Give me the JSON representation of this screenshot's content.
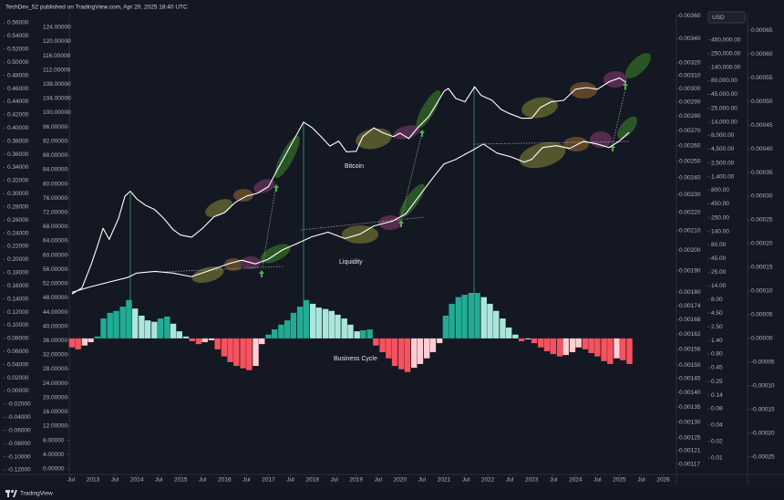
{
  "header": "TechDev_52 published on TradingView.com, Apr 20, 2025 18:40 UTC",
  "footer": "TradingView",
  "currency": "USD",
  "chart_data": [
    {
      "type": "line",
      "name": "Bitcoin",
      "color": "#ffffff",
      "log": true,
      "xlim": [
        2012.46,
        2026.3
      ],
      "xticks": [
        {
          "value": 2012.5,
          "label": "Jul"
        },
        2013,
        {
          "value": 2013.5,
          "label": "Jul"
        },
        2014,
        {
          "value": 2014.5,
          "label": "Jul"
        },
        2015,
        {
          "value": 2015.5,
          "label": "Jul"
        },
        2016,
        {
          "value": 2016.5,
          "label": "Jul"
        },
        2017,
        {
          "value": 2017.5,
          "label": "Jul"
        },
        2018,
        {
          "value": 2018.5,
          "label": "Jul"
        },
        2019,
        {
          "value": 2019.5,
          "label": "Jul"
        },
        2020,
        {
          "value": 2020.5,
          "label": "Jul"
        },
        2021,
        {
          "value": 2021.5,
          "label": "Jul"
        },
        2022,
        {
          "value": 2022.5,
          "label": "Jul"
        },
        2023,
        {
          "value": 2023.5,
          "label": "Jul"
        },
        2024,
        {
          "value": 2024.5,
          "label": "Jul"
        },
        2025,
        {
          "value": 2025.5,
          "label": "Jul"
        },
        2026
      ],
      "ylim": [
        0.005,
        1350000
      ],
      "yticks": [
        {
          "value": 450000,
          "label": "450,000.00"
        },
        {
          "value": 250000,
          "label": "250,000.00"
        },
        {
          "value": 140000,
          "label": "140,000.00"
        },
        {
          "value": 80000,
          "label": "80,000.00"
        },
        {
          "value": 45000,
          "label": "45,000.00"
        },
        {
          "value": 25000,
          "label": "25,000.00"
        },
        {
          "value": 14000,
          "label": "14,000.00"
        },
        {
          "value": 8000,
          "label": "8,000.00"
        },
        {
          "value": 4500,
          "label": "4,500.00"
        },
        {
          "value": 2500,
          "label": "2,500.00"
        },
        {
          "value": 1400,
          "label": "1,400.00"
        },
        {
          "value": 800,
          "label": "800.00"
        },
        {
          "value": 450,
          "label": "450.00"
        },
        {
          "value": 250,
          "label": "250.00"
        },
        {
          "value": 140,
          "label": "140.00"
        },
        {
          "value": 80,
          "label": "80.00"
        },
        {
          "value": 45,
          "label": "45.00"
        },
        {
          "value": 25,
          "label": "25.00"
        },
        {
          "value": 14,
          "label": "14.00"
        },
        {
          "value": 8,
          "label": "8.00"
        },
        {
          "value": 4.5,
          "label": "4.50"
        },
        {
          "value": 2.5,
          "label": "2.50"
        },
        {
          "value": 1.4,
          "label": "1.40"
        },
        {
          "value": 0.8,
          "label": "0.80"
        },
        0.45,
        0.25,
        0.14,
        0.08,
        0.04,
        0.02,
        0.01
      ],
      "x": [
        2012.52,
        2012.75,
        2012.96,
        2013.1,
        2013.23,
        2013.37,
        2013.58,
        2013.73,
        2013.85,
        2014.0,
        2014.2,
        2014.41,
        2014.62,
        2014.83,
        2015.0,
        2015.25,
        2015.5,
        2015.76,
        2016.0,
        2016.25,
        2016.5,
        2016.75,
        2017.0,
        2017.22,
        2017.5,
        2017.8,
        2018.0,
        2018.2,
        2018.4,
        2018.6,
        2018.78,
        2019.0,
        2019.15,
        2019.4,
        2019.6,
        2019.85,
        2020.0,
        2020.2,
        2020.4,
        2020.65,
        2020.82,
        2021.0,
        2021.1,
        2021.27,
        2021.48,
        2021.7,
        2021.85,
        2022.1,
        2022.3,
        2022.5,
        2022.77,
        2023.0,
        2023.2,
        2023.45,
        2023.73,
        2024.0,
        2024.25,
        2024.5,
        2024.77,
        2025.0,
        2025.15
      ],
      "values": [
        10,
        13,
        35,
        75,
        160,
        100,
        240,
        620,
        760,
        550,
        420,
        350,
        240,
        150,
        120,
        110,
        160,
        260,
        310,
        480,
        620,
        700,
        920,
        2000,
        5100,
        14000,
        11000,
        7600,
        5100,
        6300,
        4000,
        4100,
        7600,
        11000,
        9000,
        7600,
        8800,
        7000,
        11000,
        17500,
        29000,
        51000,
        58000,
        38000,
        33000,
        62000,
        43000,
        35000,
        24000,
        20000,
        16500,
        16500,
        26000,
        33000,
        35000,
        56000,
        60000,
        56000,
        77000,
        90000,
        75000
      ]
    },
    {
      "type": "line",
      "name": "Liquidity",
      "color": "#ffffff",
      "log": true,
      "ylim": [
        0.00114,
        0.00362
      ],
      "yticks": [
        {
          "value": 0.0036,
          "label": "0.00360"
        },
        {
          "value": 0.0034,
          "label": "0.00340"
        },
        {
          "value": 0.0032,
          "label": "0.00320"
        },
        {
          "value": 0.0031,
          "label": "0.00310"
        },
        {
          "value": 0.003,
          "label": "0.00300"
        },
        {
          "value": 0.0029,
          "label": "0.00290"
        },
        {
          "value": 0.0028,
          "label": "0.00280"
        },
        {
          "value": 0.0027,
          "label": "0.00270"
        },
        {
          "value": 0.0026,
          "label": "0.00260"
        },
        {
          "value": 0.0025,
          "label": "0.00250"
        },
        {
          "value": 0.0024,
          "label": "0.00240"
        },
        {
          "value": 0.0023,
          "label": "0.00230"
        },
        {
          "value": 0.0022,
          "label": "0.00220"
        },
        {
          "value": 0.0021,
          "label": "0.00210"
        },
        {
          "value": 0.002,
          "label": "0.00200"
        },
        {
          "value": 0.0019,
          "label": "0.00190"
        },
        {
          "value": 0.0018,
          "label": "0.00180"
        },
        0.00174,
        0.00168,
        0.00162,
        0.00156,
        {
          "value": 0.0015,
          "label": "0.00150"
        },
        0.00145,
        {
          "value": 0.0014,
          "label": "0.00140"
        },
        0.00135,
        {
          "value": 0.0013,
          "label": "0.00130"
        },
        0.00125,
        0.00121,
        0.00117
      ],
      "x": [
        2012.52,
        2012.96,
        2013.37,
        2013.79,
        2014.0,
        2014.41,
        2014.83,
        2015.24,
        2015.66,
        2016.08,
        2016.39,
        2016.7,
        2016.99,
        2017.32,
        2017.63,
        2017.99,
        2018.36,
        2018.74,
        2019.09,
        2019.4,
        2019.82,
        2020.13,
        2020.44,
        2020.75,
        2021.0,
        2021.27,
        2021.65,
        2021.9,
        2022.21,
        2022.52,
        2022.83,
        2023.0,
        2023.25,
        2023.56,
        2023.87,
        2024.18,
        2024.49,
        2024.76,
        2024.99,
        2025.22
      ],
      "values": [
        0.0018,
        0.001826,
        0.001847,
        0.001868,
        0.001889,
        0.001897,
        0.001889,
        0.001872,
        0.001901,
        0.001933,
        0.001951,
        0.001933,
        0.001955,
        0.002002,
        0.002032,
        0.002069,
        0.002093,
        0.00206,
        0.002083,
        0.002126,
        0.002151,
        0.002191,
        0.002293,
        0.002399,
        0.002483,
        0.002512,
        0.00257,
        0.002611,
        0.002552,
        0.002529,
        0.002495,
        0.002512,
        0.002588,
        0.0026,
        0.002582,
        0.002628,
        0.002611,
        0.002588,
        0.002628,
        0.002688
      ]
    },
    {
      "type": "bar",
      "name": "Business Cycle",
      "colors": {
        "grow_above": "#22ab94",
        "fall_above": "#ace5dc",
        "grow_below": "#ffcdd2",
        "fall_below": "#f7525f"
      },
      "ylim": [
        -0.000287,
        0.000685
      ],
      "yticks": [
        0.00065,
        {
          "value": 0.0006,
          "label": "0.00060"
        },
        0.00055,
        {
          "value": 0.0005,
          "label": "0.00050"
        },
        0.00045,
        {
          "value": 0.0004,
          "label": "0.00040"
        },
        0.00035,
        {
          "value": 0.0003,
          "label": "0.00030"
        },
        0.00025,
        {
          "value": 0.0002,
          "label": "0.00020"
        },
        0.00015,
        {
          "value": 0.0001,
          "label": "0.00010"
        },
        5e-05,
        {
          "value": 0,
          "label": "0.00000"
        },
        -5e-05,
        {
          "value": -0.0001,
          "label": "-0.00010"
        },
        -0.00015,
        {
          "value": -0.0002,
          "label": "-0.00020"
        },
        -0.00025
      ],
      "x": [
        2012.52,
        2012.66,
        2012.81,
        2012.95,
        2013.1,
        2013.24,
        2013.39,
        2013.53,
        2013.68,
        2013.82,
        2013.96,
        2014.11,
        2014.25,
        2014.4,
        2014.54,
        2014.69,
        2014.83,
        2014.97,
        2015.12,
        2015.26,
        2015.41,
        2015.55,
        2015.7,
        2015.84,
        2015.99,
        2016.13,
        2016.27,
        2016.42,
        2016.56,
        2016.71,
        2016.85,
        2017.0,
        2017.14,
        2017.29,
        2017.43,
        2017.57,
        2017.72,
        2017.86,
        2018.01,
        2018.15,
        2018.3,
        2018.44,
        2018.58,
        2018.73,
        2018.87,
        2019.02,
        2019.16,
        2019.31,
        2019.45,
        2019.6,
        2019.74,
        2019.88,
        2020.03,
        2020.17,
        2020.32,
        2020.46,
        2020.61,
        2020.75,
        2020.9,
        2021.04,
        2021.18,
        2021.33,
        2021.47,
        2021.62,
        2021.76,
        2021.91,
        2022.05,
        2022.19,
        2022.34,
        2022.48,
        2022.63,
        2022.77,
        2022.92,
        2023.06,
        2023.21,
        2023.35,
        2023.49,
        2023.64,
        2023.78,
        2023.93,
        2024.07,
        2024.22,
        2024.36,
        2024.5,
        2024.65,
        2024.79,
        2024.94,
        2025.08,
        2025.23
      ],
      "values": [
        -1.9e-05,
        -2.3e-05,
        -1.5e-05,
        -8e-06,
        4e-06,
        4.2e-05,
        5.4e-05,
        5.8e-05,
        6.7e-05,
        8.1e-05,
        6.3e-05,
        4.8e-05,
        3.8e-05,
        3.5e-05,
        4.2e-05,
        4.6e-05,
        3.1e-05,
        1.5e-05,
        4e-06,
        -6e-06,
        -1.2e-05,
        -8e-06,
        -4e-06,
        -2.3e-05,
        -3.8e-05,
        -5e-05,
        -5.8e-05,
        -6.3e-05,
        -6.7e-05,
        -5.8e-05,
        -1.2e-05,
        8e-06,
        1.9e-05,
        2.9e-05,
        3.8e-05,
        5.4e-05,
        6.7e-05,
        8.1e-05,
        7.3e-05,
        6.5e-05,
        6.2e-05,
        5.8e-05,
        5e-05,
        4.2e-05,
        2.9e-05,
        1.5e-05,
        1.7e-05,
        1.9e-05,
        -1.5e-05,
        -2.9e-05,
        -4.2e-05,
        -5.8e-05,
        -6.5e-05,
        -7.1e-05,
        -6.2e-05,
        -5.4e-05,
        -4.2e-05,
        -2.9e-05,
        -1e-05,
        4.8e-05,
        7.3e-05,
        8.7e-05,
        9.2e-05,
        9.6e-05,
        9.6e-05,
        8.7e-05,
        7.3e-05,
        5.8e-05,
        4.2e-05,
        2.3e-05,
        8e-06,
        -6e-06,
        -2e-06,
        -1e-05,
        -1.9e-05,
        -2.7e-05,
        -3.3e-05,
        -3.8e-05,
        -3.5e-05,
        -2.9e-05,
        -1.9e-05,
        -2.3e-05,
        -3.1e-05,
        -3.8e-05,
        -4.8e-05,
        -5.4e-05,
        -4.2e-05,
        -4.6e-05,
        -5.4e-05
      ]
    },
    {
      "type": "axis",
      "ylim": [
        -0.127,
        0.5739
      ],
      "yticks": [
        {
          "value": 0.56,
          "label": "0.56000"
        },
        {
          "value": 0.54,
          "label": "0.54000"
        },
        {
          "value": 0.52,
          "label": "0.52000"
        },
        {
          "value": 0.5,
          "label": "0.50000"
        },
        {
          "value": 0.48,
          "label": "0.48000"
        },
        {
          "value": 0.46,
          "label": "0.46000"
        },
        {
          "value": 0.44,
          "label": "0.44000"
        },
        {
          "value": 0.42,
          "label": "0.42000"
        },
        {
          "value": 0.4,
          "label": "0.40000"
        },
        {
          "value": 0.38,
          "label": "0.38000"
        },
        {
          "value": 0.36,
          "label": "0.36000"
        },
        {
          "value": 0.34,
          "label": "0.34000"
        },
        {
          "value": 0.32,
          "label": "0.32000"
        },
        {
          "value": 0.3,
          "label": "0.30000"
        },
        {
          "value": 0.28,
          "label": "0.28000"
        },
        {
          "value": 0.26,
          "label": "0.26000"
        },
        {
          "value": 0.24,
          "label": "0.24000"
        },
        {
          "value": 0.22,
          "label": "0.22000"
        },
        {
          "value": 0.2,
          "label": "0.20000"
        },
        {
          "value": 0.18,
          "label": "0.18000"
        },
        {
          "value": 0.16,
          "label": "0.16000"
        },
        {
          "value": 0.14,
          "label": "0.14000"
        },
        {
          "value": 0.12,
          "label": "0.12000"
        },
        {
          "value": 0.1,
          "label": "0.10000"
        },
        {
          "value": 0.08,
          "label": "0.08000"
        },
        {
          "value": 0.06,
          "label": "0.06000"
        },
        {
          "value": 0.04,
          "label": "0.04000"
        },
        {
          "value": 0.02,
          "label": "0.02000"
        },
        {
          "value": 0,
          "label": "0.00000"
        },
        {
          "value": -0.02,
          "label": "-0.02000"
        },
        {
          "value": -0.04,
          "label": "-0.04000"
        },
        {
          "value": -0.06,
          "label": "-0.06000"
        },
        {
          "value": -0.08,
          "label": "-0.08000"
        },
        {
          "value": -0.1,
          "label": "-0.10000"
        },
        {
          "value": -0.12,
          "label": "-0.12000"
        }
      ]
    },
    {
      "type": "axis",
      "ylim": [
        -1.6,
        127.8
      ],
      "yticks": [
        {
          "value": 124,
          "label": "124.00000"
        },
        {
          "value": 120,
          "label": "120.00000"
        },
        {
          "value": 116,
          "label": "116.00000"
        },
        {
          "value": 112,
          "label": "112.00000"
        },
        {
          "value": 108,
          "label": "108.00000"
        },
        {
          "value": 104,
          "label": "104.00000"
        },
        {
          "value": 100,
          "label": "100.00000"
        },
        {
          "value": 96,
          "label": "96.00000"
        },
        {
          "value": 92,
          "label": "92.00000"
        },
        {
          "value": 88,
          "label": "88.00000"
        },
        {
          "value": 84,
          "label": "84.00000"
        },
        {
          "value": 80,
          "label": "80.00000"
        },
        {
          "value": 76,
          "label": "76.00000"
        },
        {
          "value": 72,
          "label": "72.00000"
        },
        {
          "value": 68,
          "label": "68.00000"
        },
        {
          "value": 64,
          "label": "64.00000"
        },
        {
          "value": 60,
          "label": "60.00000"
        },
        {
          "value": 56,
          "label": "56.00000"
        },
        {
          "value": 52,
          "label": "52.00000"
        },
        {
          "value": 48,
          "label": "48.00000"
        },
        {
          "value": 44,
          "label": "44.00000"
        },
        {
          "value": 40,
          "label": "40.00000"
        },
        {
          "value": 36,
          "label": "36.00000"
        },
        {
          "value": 32,
          "label": "32.00000"
        },
        {
          "value": 28,
          "label": "28.00000"
        },
        {
          "value": 24,
          "label": "24.00000"
        },
        {
          "value": 20,
          "label": "20.00000"
        },
        {
          "value": 16,
          "label": "16.00000"
        },
        {
          "value": 12,
          "label": "12.00000"
        },
        {
          "value": 8,
          "label": "8.00000"
        },
        {
          "value": 4,
          "label": "4.00000"
        },
        {
          "value": 0,
          "label": "0.00000"
        }
      ]
    }
  ]
}
